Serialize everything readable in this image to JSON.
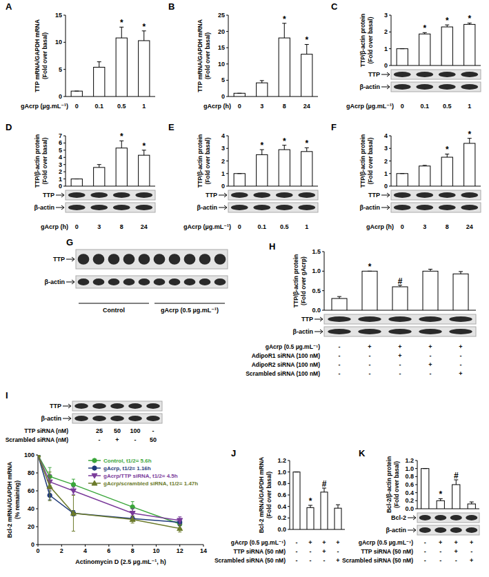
{
  "chart_data": [
    {
      "type": "bar",
      "title": "A",
      "ylabel": [
        "TTP mRNA/GAPDH mRNA",
        "(Fold over basal)"
      ],
      "xlabel": "gAcrp (µg.mL⁻¹)",
      "categories": [
        "0",
        "0.1",
        "0.5",
        "1"
      ],
      "values": [
        1,
        5.4,
        10.8,
        10.3
      ],
      "errors": [
        0,
        1.0,
        2.0,
        1.8
      ],
      "annotations": [
        null,
        null,
        "*",
        "*"
      ],
      "color": "#ffffff",
      "ylim": [
        0,
        15
      ],
      "yticks": [
        0,
        5,
        10,
        15
      ]
    },
    {
      "type": "bar",
      "title": "B",
      "ylabel": [
        "TTP mRNA/GAPDH mRNA",
        "(Fold over basal)"
      ],
      "xlabel": "gAcrp (h)",
      "categories": [
        "0",
        "3",
        "8",
        "24"
      ],
      "values": [
        1,
        4.2,
        18,
        13
      ],
      "errors": [
        0,
        0.7,
        4.5,
        3.0
      ],
      "annotations": [
        null,
        null,
        "*",
        "*"
      ],
      "color": "#ffffff",
      "ylim": [
        0,
        25
      ],
      "yticks": [
        0,
        5,
        10,
        15,
        20,
        25
      ]
    },
    {
      "type": "bar",
      "title": "C",
      "ylabel": [
        "TTP/β-actin protein",
        "(Fold over basal)"
      ],
      "xlabel": "gAcrp (µg.mL⁻¹)",
      "categories": [
        "0",
        "0.1",
        "0.5",
        "1"
      ],
      "values": [
        1,
        1.88,
        2.3,
        2.45
      ],
      "errors": [
        0,
        0.08,
        0.12,
        0.08
      ],
      "annotations": [
        null,
        "*",
        "*",
        "*"
      ],
      "blot": [
        "TTP",
        "β-actin"
      ],
      "color": "#ffffff",
      "ylim": [
        0,
        3
      ],
      "yticks": [
        0,
        1,
        2,
        3
      ]
    },
    {
      "type": "bar",
      "title": "D",
      "ylabel": [
        "TTP/β-actin protein",
        "(Fold over basal)"
      ],
      "xlabel": "gAcrp (h)",
      "categories": [
        "0",
        "3",
        "8",
        "24"
      ],
      "values": [
        1,
        2.6,
        5.3,
        4.3
      ],
      "errors": [
        0,
        0.4,
        1.0,
        0.7
      ],
      "annotations": [
        null,
        null,
        "*",
        "*"
      ],
      "blot": [
        "TTP",
        "β-actin"
      ],
      "color": "#ffffff",
      "ylim": [
        0,
        7
      ],
      "yticks": [
        0,
        1,
        2,
        3,
        4,
        5,
        6,
        7
      ]
    },
    {
      "type": "bar",
      "title": "E",
      "ylabel": [
        "TTP/β-actin protein",
        "(Fold over basal)"
      ],
      "xlabel": "gAcrp (µg.mL⁻¹)",
      "categories": [
        "0",
        "0.1",
        "0.5",
        "1"
      ],
      "values": [
        1,
        2.5,
        2.9,
        2.75
      ],
      "errors": [
        0,
        0.4,
        0.35,
        0.3
      ],
      "annotations": [
        null,
        "*",
        "*",
        "*"
      ],
      "blot": [
        "TTP",
        "β-actin"
      ],
      "color": "#ffffff",
      "ylim": [
        0,
        4
      ],
      "yticks": [
        0,
        1,
        2,
        3,
        4
      ]
    },
    {
      "type": "bar",
      "title": "F",
      "ylabel": [
        "TTP/β-actin protein",
        "(Fold over basal)"
      ],
      "xlabel": "gAcrp (h)",
      "categories": [
        "0",
        "3",
        "8",
        "24"
      ],
      "values": [
        1,
        1.6,
        2.3,
        3.4
      ],
      "errors": [
        0,
        0.05,
        0.25,
        0.4
      ],
      "annotations": [
        null,
        null,
        "*",
        "*"
      ],
      "blot": [
        "TTP",
        "β-actin"
      ],
      "color": "#ffffff",
      "ylim": [
        0,
        4
      ],
      "yticks": [
        0,
        1,
        2,
        3,
        4
      ]
    },
    {
      "type": "blot",
      "title": "G",
      "blot": [
        "TTP",
        "β-actin"
      ],
      "groups": [
        "Control",
        "gAcrp (0.5 µg.mL⁻¹)"
      ]
    },
    {
      "type": "bar",
      "title": "H",
      "ylabel": [
        "TTP/β-actin protein",
        "(Fold over gAcrp)"
      ],
      "values": [
        0.3,
        1.0,
        0.6,
        1.0,
        0.93
      ],
      "errors": [
        0.05,
        0,
        0.04,
        0.05,
        0.06
      ],
      "annotations": [
        null,
        "*",
        "#",
        null,
        null
      ],
      "blot": [
        "TTP",
        "β-actin"
      ],
      "conditions": [
        {
          "label": "gAcrp (0.5 µg.mL⁻¹)",
          "values": [
            "-",
            "+",
            "+",
            "+",
            "+"
          ]
        },
        {
          "label": "AdipoR1 siRNA (100 nM)",
          "values": [
            "-",
            "-",
            "+",
            "-",
            "-"
          ]
        },
        {
          "label": "AdipoR2 siRNA (100 nM)",
          "values": [
            "-",
            "-",
            "-",
            "+",
            "-"
          ]
        },
        {
          "label": "Scrambled siRNA (100 nM)",
          "values": [
            "-",
            "-",
            "-",
            "-",
            "+"
          ]
        }
      ],
      "color": "#ffffff",
      "ylim": [
        0,
        1.5
      ],
      "yticks": [
        {
          "value": 0,
          "label": "0.0"
        },
        {
          "value": 0.5,
          "label": "0.5"
        },
        {
          "value": 1,
          "label": "1.0"
        },
        {
          "value": 1.5,
          "label": "1.5"
        }
      ]
    },
    {
      "type": "blot",
      "title": "I",
      "blot": [
        "TTP",
        "β-actin"
      ],
      "conditions": [
        {
          "label": "TTP siRNA (nM)",
          "values": [
            null,
            "25",
            "50",
            "100",
            "-"
          ]
        },
        {
          "label": "Scrambled siRNA (nM)",
          "values": [
            null,
            "-",
            "+",
            "-",
            "50"
          ]
        }
      ]
    },
    {
      "type": "line",
      "ylabel": [
        "Bcl-2 mRNA/GAPDH mRNA",
        "(% remaining)"
      ],
      "xlabel": "Actinomycin D (2.5 µg.mL⁻¹, h)",
      "x": [
        0,
        1,
        3,
        8,
        12
      ],
      "series": [
        {
          "name": "Control, t1/2= 5.6h",
          "color": "#3aa63a",
          "marker": "circle",
          "values": [
            100,
            76,
            67,
            42,
            23
          ],
          "errors": [
            0,
            10,
            6,
            6,
            5
          ]
        },
        {
          "name": "gAcrp, t1/2= 1.16h",
          "color": "#1f3a7a",
          "marker": "circle",
          "values": [
            100,
            55,
            35,
            29,
            25
          ],
          "errors": [
            0,
            5,
            3,
            3,
            4
          ]
        },
        {
          "name": "gAcrp/TTP siRNA, t1/2= 4.5h",
          "color": "#7a3a9a",
          "marker": "triangle-down",
          "values": [
            100,
            70,
            60,
            35,
            27
          ],
          "errors": [
            0,
            8,
            4,
            5,
            4
          ]
        },
        {
          "name": "gAcrp/scrambled siRNA, t1/2= 1.47h",
          "color": "#6b7a2a",
          "marker": "triangle",
          "values": [
            100,
            65,
            35,
            28,
            18
          ],
          "errors": [
            0,
            16,
            20,
            4,
            4
          ]
        }
      ],
      "xlim": [
        0,
        14
      ],
      "xticks": [
        0,
        2,
        4,
        6,
        8,
        10,
        12,
        14
      ],
      "ylim": [
        0,
        100
      ],
      "yticks": [
        0,
        20,
        40,
        60,
        80,
        100
      ],
      "legend": "upper right"
    },
    {
      "type": "bar",
      "title": "J",
      "ylabel": [
        "Bcl-2 mRNA/GAPDH mRNA",
        "(Fold over basal)"
      ],
      "values": [
        1,
        0.38,
        0.65,
        0.37
      ],
      "errors": [
        0,
        0.04,
        0.07,
        0.06
      ],
      "annotations": [
        null,
        "*",
        "#",
        null
      ],
      "conditions": [
        {
          "label": "gAcrp (0.5 µg.mL⁻¹)",
          "values": [
            "-",
            "+",
            "+",
            "+"
          ]
        },
        {
          "label": "TTP siRNA (50 nM)",
          "values": [
            "-",
            "-",
            "+",
            "-"
          ]
        },
        {
          "label": "Scrambled siRNA (50 nM)",
          "values": [
            "-",
            "-",
            "-",
            "+"
          ]
        }
      ],
      "color": "#ffffff",
      "ylim": [
        0,
        1.2
      ],
      "yticks": [
        {
          "value": 0,
          "label": "0.0"
        },
        {
          "value": 0.2,
          "label": "0.2"
        },
        {
          "value": 0.4,
          "label": "0.4"
        },
        {
          "value": 0.6,
          "label": "0.6"
        },
        {
          "value": 0.8,
          "label": "0.8"
        },
        {
          "value": 1,
          "label": "1.0"
        },
        {
          "value": 1.2,
          "label": "1.2"
        }
      ]
    },
    {
      "type": "bar",
      "title": "K",
      "ylabel": [
        "Bcl-2/β-actin protein",
        "(Fold over basal)"
      ],
      "values": [
        1,
        0.2,
        0.6,
        0.12
      ],
      "errors": [
        0,
        0.05,
        0.12,
        0.05
      ],
      "annotations": [
        null,
        "*",
        "#",
        null
      ],
      "blot": [
        "Bcl-2",
        "β-actin"
      ],
      "conditions": [
        {
          "label": "gAcrp (0.5 µg.mL⁻¹)",
          "values": [
            "-",
            "+",
            "+",
            "+"
          ]
        },
        {
          "label": "TTP siRNA (50 nM)",
          "values": [
            "-",
            "-",
            "+",
            "-"
          ]
        },
        {
          "label": "Scrambled siRNA (50 nM)",
          "values": [
            "-",
            "-",
            "-",
            "+"
          ]
        }
      ],
      "color": "#ffffff",
      "ylim": [
        0,
        1.2
      ],
      "yticks": [
        {
          "value": 0,
          "label": "0.0"
        },
        {
          "value": 0.2,
          "label": "0.2"
        },
        {
          "value": 0.4,
          "label": "0.4"
        },
        {
          "value": 0.6,
          "label": "0.6"
        },
        {
          "value": 0.8,
          "label": "0.8"
        },
        {
          "value": 1,
          "label": "1.0"
        },
        {
          "value": 1.2,
          "label": "1.2"
        }
      ]
    }
  ]
}
